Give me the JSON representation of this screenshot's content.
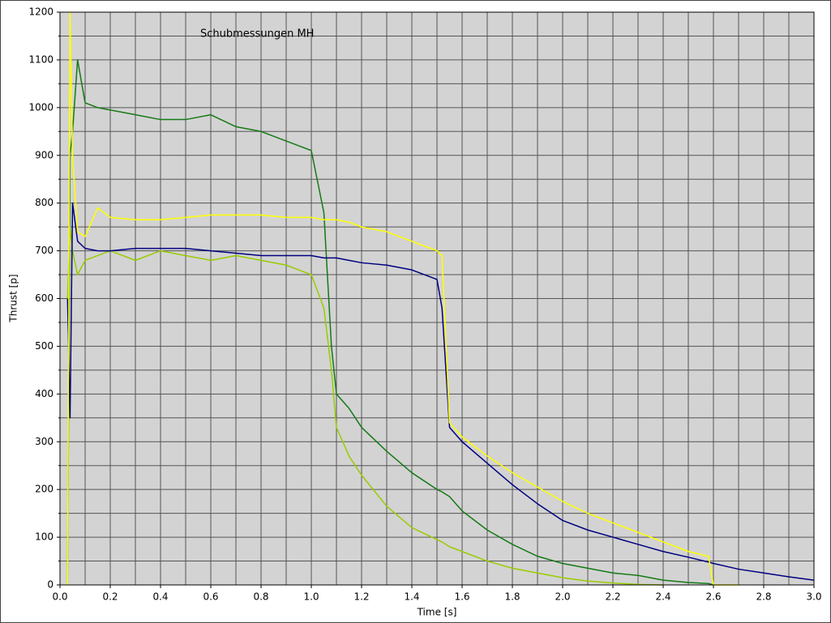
{
  "chart_data": {
    "type": "line",
    "title": "Schubmessungen MH",
    "x_label": "Time [s]",
    "y_label": "Thrust [p]",
    "x": [
      0,
      0.03,
      0.04,
      0.05,
      0.07,
      0.1,
      0.15,
      0.2,
      0.3,
      0.4,
      0.5,
      0.6,
      0.7,
      0.8,
      0.9,
      1.0,
      1.05,
      1.08,
      1.1,
      1.15,
      1.2,
      1.3,
      1.4,
      1.5,
      1.52,
      1.55,
      1.6,
      1.7,
      1.8,
      1.9,
      2.0,
      2.1,
      2.2,
      2.3,
      2.4,
      2.5,
      2.58,
      2.6,
      2.7,
      2.8,
      2.9,
      3.0
    ],
    "series": [
      {
        "color": "#157a15",
        "values": [
          null,
          0,
          900,
          950,
          1100,
          1010,
          1000,
          995,
          985,
          975,
          975,
          985,
          960,
          950,
          930,
          910,
          780,
          500,
          400,
          370,
          330,
          280,
          235,
          200,
          195,
          185,
          155,
          115,
          85,
          60,
          45,
          35,
          25,
          20,
          10,
          5,
          3,
          0,
          null,
          null,
          null,
          null
        ]
      },
      {
        "color": "#99cc00",
        "values": [
          null,
          600,
          750,
          700,
          650,
          680,
          690,
          700,
          680,
          700,
          690,
          680,
          690,
          680,
          670,
          650,
          580,
          450,
          330,
          270,
          230,
          165,
          120,
          95,
          90,
          80,
          70,
          50,
          35,
          25,
          15,
          8,
          4,
          1,
          0,
          null,
          null,
          null,
          null,
          null,
          null,
          null
        ]
      },
      {
        "color": "#000080",
        "values": [
          null,
          600,
          350,
          800,
          720,
          705,
          700,
          700,
          705,
          705,
          705,
          700,
          695,
          690,
          690,
          690,
          685,
          685,
          685,
          680,
          675,
          670,
          660,
          640,
          580,
          330,
          300,
          255,
          210,
          170,
          135,
          115,
          100,
          85,
          70,
          58,
          48,
          45,
          33,
          25,
          17,
          10
        ]
      },
      {
        "color": "#ffff00",
        "values": [
          null,
          0,
          1200,
          900,
          740,
          730,
          790,
          770,
          765,
          765,
          770,
          775,
          775,
          775,
          770,
          770,
          765,
          765,
          765,
          760,
          750,
          740,
          720,
          700,
          690,
          340,
          310,
          270,
          235,
          205,
          175,
          150,
          130,
          110,
          90,
          70,
          60,
          0,
          0,
          null,
          null,
          null
        ]
      }
    ],
    "xlim": [
      0,
      3
    ],
    "ylim": [
      0,
      1200
    ],
    "xticks": [
      {
        "value": 0,
        "label": "0.0"
      },
      0.2,
      0.4,
      0.6,
      0.8,
      {
        "value": 1,
        "label": "1.0"
      },
      1.2,
      1.4,
      1.6,
      1.8,
      {
        "value": 2,
        "label": "2.0"
      },
      2.2,
      2.4,
      2.6,
      2.8,
      {
        "value": 3,
        "label": "3.0"
      }
    ],
    "yticks": [
      0,
      100,
      200,
      300,
      400,
      500,
      600,
      700,
      800,
      900,
      1000,
      1100,
      1200
    ],
    "grid": true,
    "minor_grid": true,
    "plot_background": "#d3d3d3"
  }
}
